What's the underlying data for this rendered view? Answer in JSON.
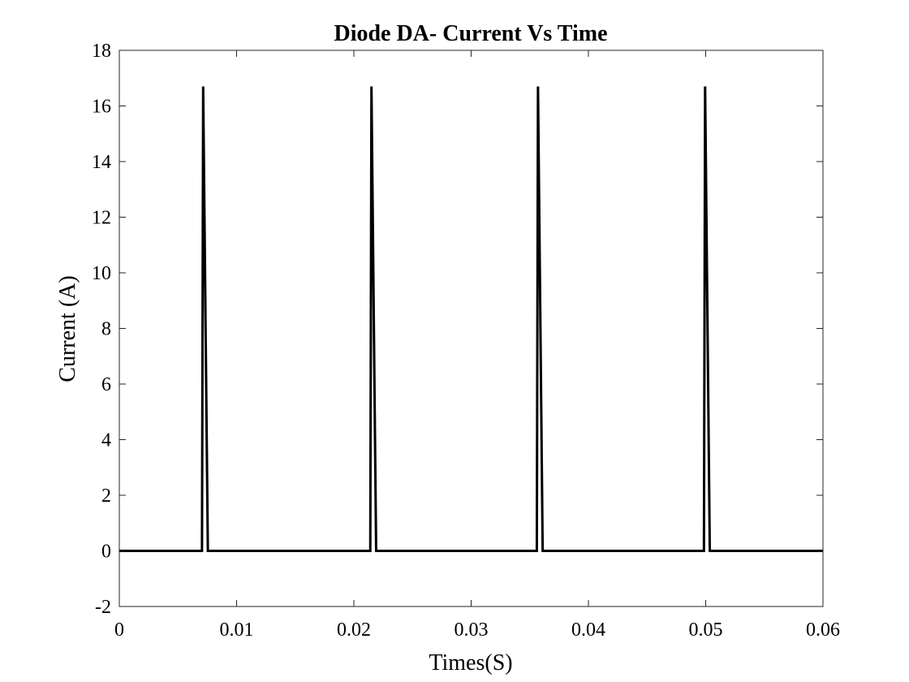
{
  "chart_data": {
    "type": "line",
    "title": "Diode DA- Current Vs Time",
    "xlabel": "Times(S)",
    "ylabel": "Current (A)",
    "xlim": [
      0,
      0.06
    ],
    "ylim": [
      -2,
      18
    ],
    "xticks": [
      0,
      0.01,
      0.02,
      0.03,
      0.04,
      0.05,
      0.06
    ],
    "xtick_labels": [
      "0",
      "0.01",
      "0.02",
      "0.03",
      "0.04",
      "0.05",
      "0.06"
    ],
    "yticks": [
      -2,
      0,
      2,
      4,
      6,
      8,
      10,
      12,
      14,
      16,
      18
    ],
    "ytick_labels": [
      "-2",
      "0",
      "2",
      "4",
      "6",
      "8",
      "10",
      "12",
      "14",
      "16",
      "18"
    ],
    "grid": false,
    "legend": "none",
    "line_color": "#000000",
    "series": [
      {
        "x": [
          0,
          0.00705,
          0.00715,
          0.00755,
          0.0214,
          0.0215,
          0.0219,
          0.0356,
          0.0357,
          0.0361,
          0.04985,
          0.04995,
          0.05035,
          0.06
        ],
        "y": [
          0,
          0,
          16.7,
          0,
          0,
          16.7,
          0,
          0,
          16.7,
          0,
          0,
          16.7,
          0,
          0
        ]
      }
    ]
  }
}
